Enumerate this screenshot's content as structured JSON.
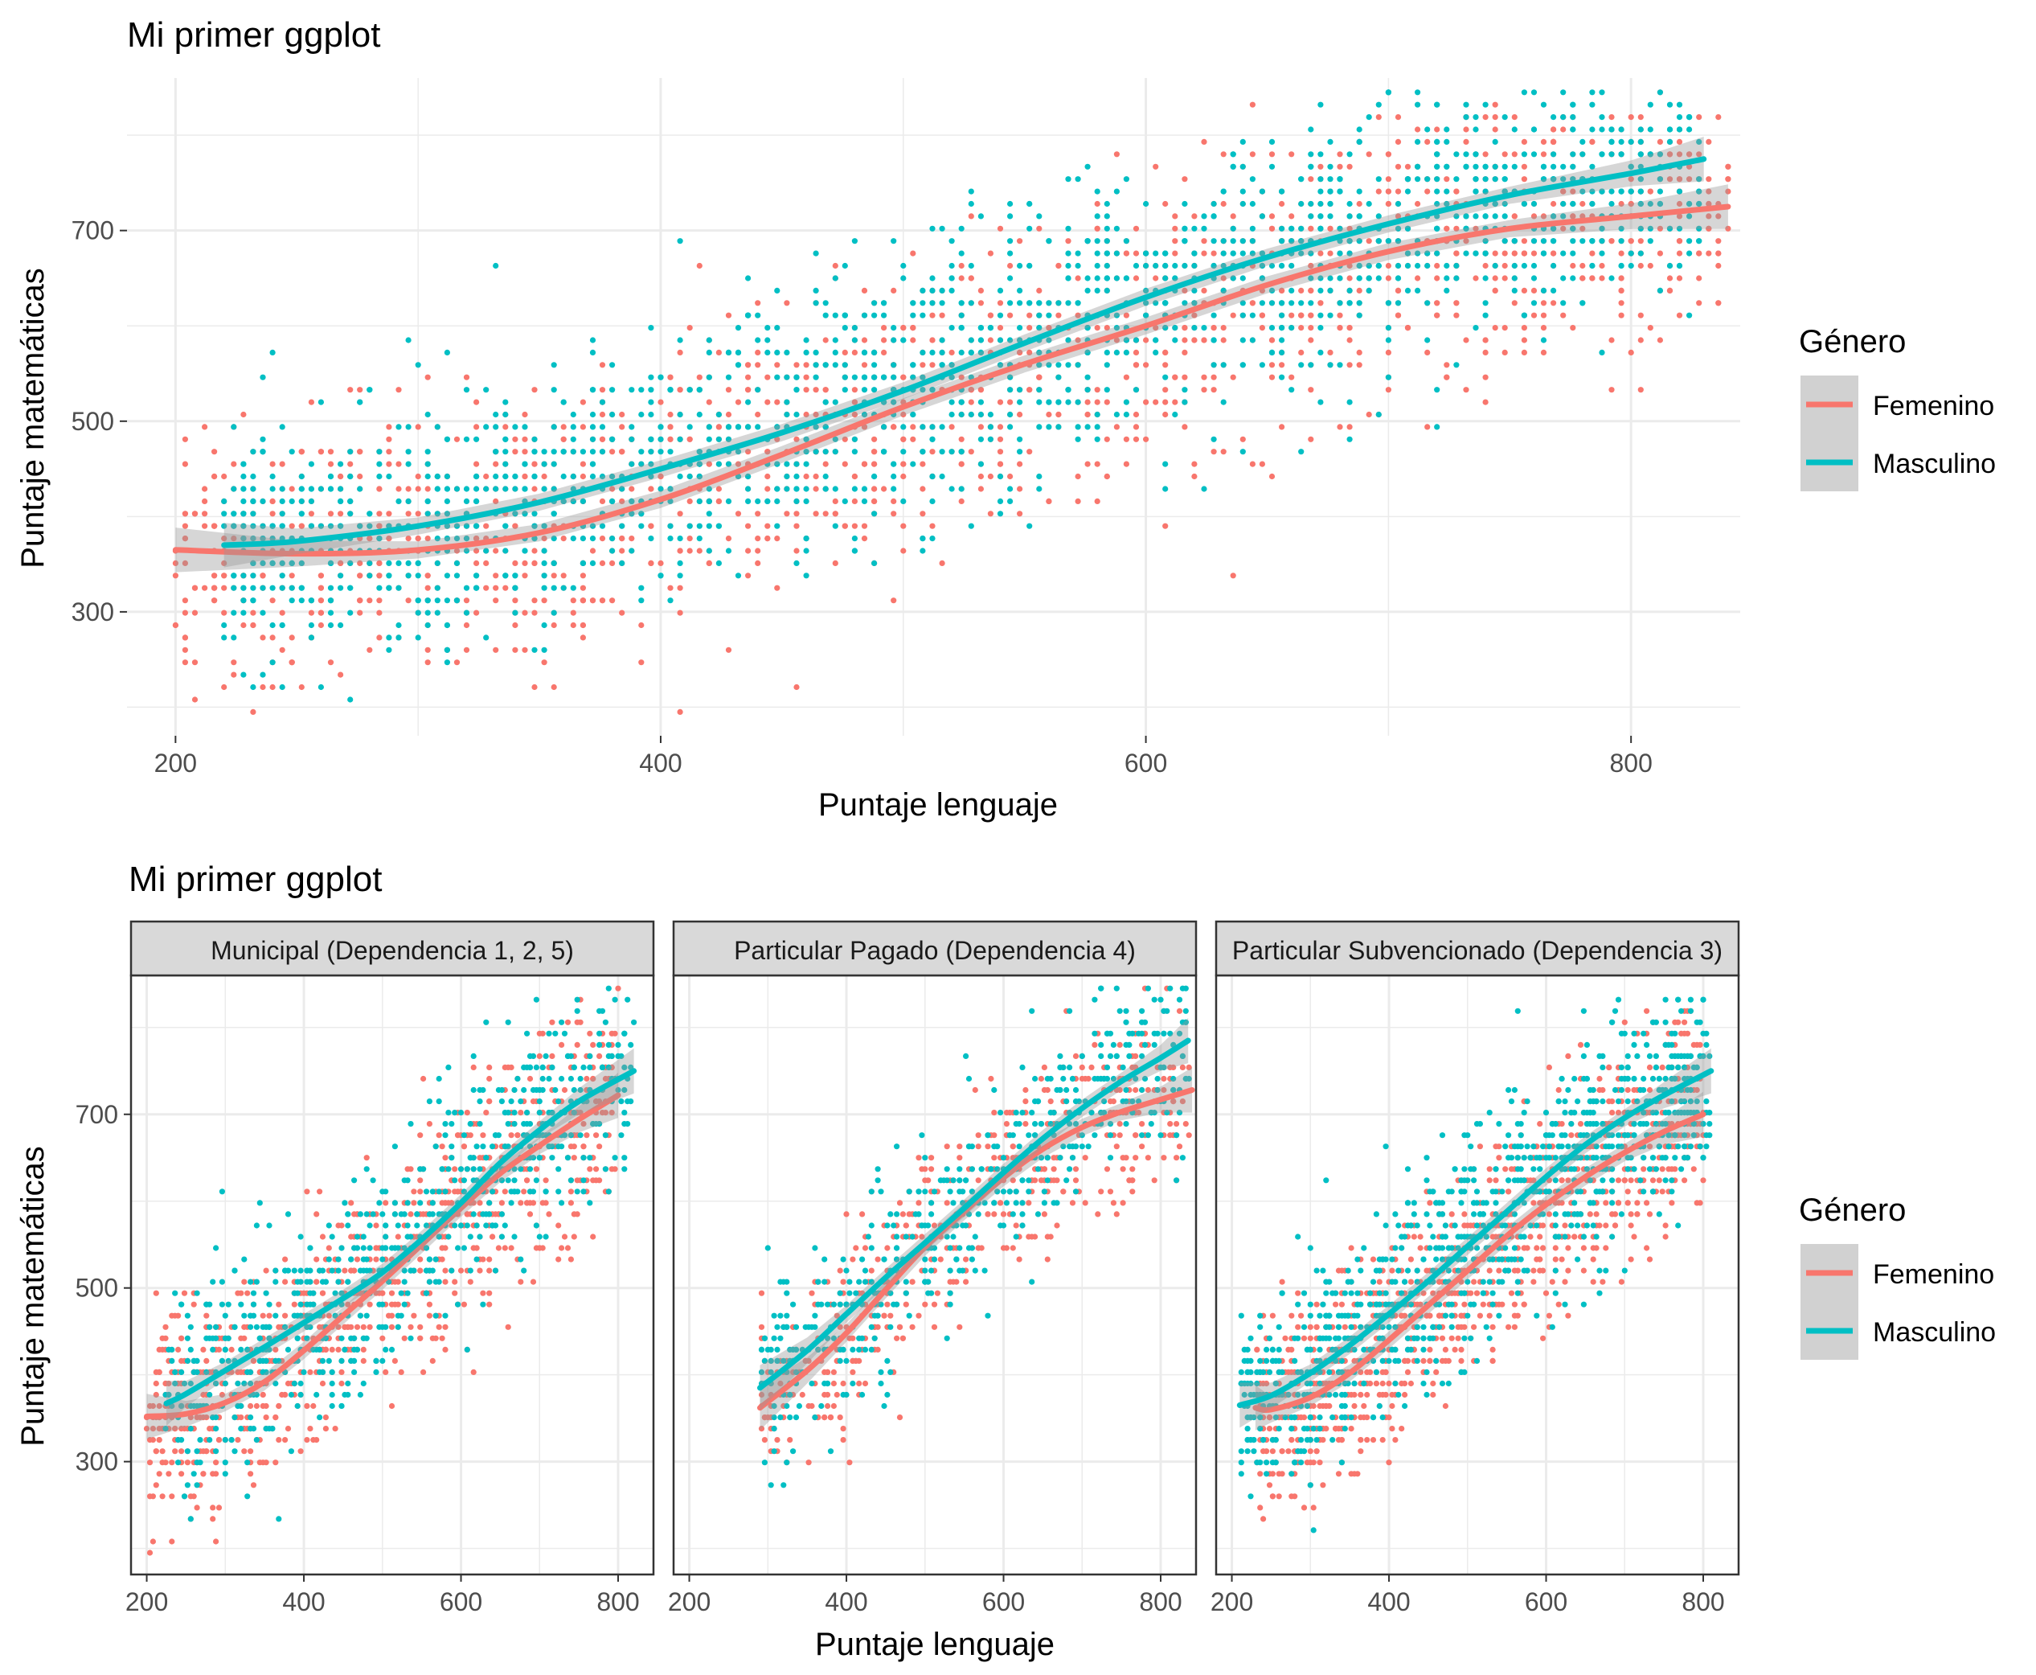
{
  "colors": {
    "femenino": "#F8766D",
    "masculino": "#00BFC4",
    "ribbon": "#999999",
    "strip_fill": "#D9D9D9",
    "grid": "#EBEBEB",
    "frame": "#333333"
  },
  "chart_data": [
    {
      "type": "scatter",
      "title": "Mi primer ggplot",
      "xlabel": "Puntaje lenguaje",
      "ylabel": "Puntaje matemáticas",
      "xlim": [
        180,
        845
      ],
      "ylim": [
        170,
        860
      ],
      "xticks": [
        "200",
        "400",
        "600",
        "800"
      ],
      "yticks": [
        "300",
        "500",
        "700"
      ],
      "grid": true,
      "legend": {
        "title": "Género",
        "position": "right",
        "entries": [
          "Femenino",
          "Masculino"
        ]
      },
      "smooth": {
        "method": "loess",
        "series": [
          {
            "name": "Femenino",
            "x": [
              200,
              250,
              300,
              350,
              400,
              450,
              500,
              550,
              600,
              650,
              700,
              750,
              800,
              840
            ],
            "y": [
              365,
              361,
              365,
              383,
              418,
              465,
              515,
              560,
              600,
              643,
              678,
              702,
              715,
              725
            ]
          },
          {
            "name": "Masculino",
            "x": [
              220,
              250,
              300,
              350,
              400,
              450,
              500,
              550,
              600,
              650,
              700,
              750,
              800,
              830
            ],
            "y": [
              370,
              374,
              390,
              415,
              450,
              488,
              532,
              582,
              630,
              672,
              707,
              737,
              760,
              775
            ]
          }
        ]
      },
      "points": {
        "series": [
          {
            "name": "Femenino",
            "approx_count": 1700,
            "center_curve": "Femenino",
            "x_range": [
              200,
              840
            ]
          },
          {
            "name": "Masculino",
            "approx_count": 1700,
            "center_curve": "Masculino",
            "x_range": [
              220,
              830
            ]
          }
        ]
      }
    },
    {
      "type": "scatter",
      "title": "Mi primer ggplot",
      "xlabel": "Puntaje lenguaje",
      "ylabel": "Puntaje matemáticas",
      "xlim": [
        180,
        845
      ],
      "ylim": [
        170,
        860
      ],
      "xticks": [
        "200",
        "400",
        "600",
        "800"
      ],
      "yticks": [
        "300",
        "500",
        "700"
      ],
      "grid": true,
      "legend": {
        "title": "Género",
        "position": "right",
        "entries": [
          "Femenino",
          "Masculino"
        ]
      },
      "facets": [
        {
          "label": "Municipal (Dependencia 1, 2, 5)",
          "smooth": [
            {
              "name": "Femenino",
              "x": [
                200,
                250,
                300,
                350,
                400,
                450,
                500,
                550,
                600,
                650,
                700,
                750,
                800
              ],
              "y": [
                352,
                355,
                368,
                392,
                428,
                468,
                508,
                550,
                592,
                632,
                664,
                694,
                722
              ]
            },
            {
              "name": "Masculino",
              "x": [
                225,
                250,
                300,
                350,
                400,
                450,
                500,
                550,
                600,
                650,
                700,
                750,
                820
              ],
              "y": [
                367,
                378,
                405,
                432,
                460,
                488,
                518,
                556,
                598,
                644,
                682,
                715,
                750
              ]
            }
          ],
          "points": [
            {
              "name": "Femenino",
              "approx_count": 900,
              "x_range": [
                200,
                800
              ]
            },
            {
              "name": "Masculino",
              "approx_count": 700,
              "x_range": [
                225,
                820
              ]
            }
          ]
        },
        {
          "label": "Particular Pagado (Dependencia 4)",
          "smooth": [
            {
              "name": "Femenino",
              "x": [
                290,
                350,
                400,
                450,
                500,
                550,
                600,
                650,
                700,
                750,
                800,
                840
              ],
              "y": [
                362,
                405,
                448,
                498,
                547,
                588,
                627,
                660,
                685,
                703,
                717,
                728
              ]
            },
            {
              "name": "Masculino",
              "x": [
                290,
                350,
                400,
                450,
                500,
                550,
                600,
                650,
                700,
                750,
                800,
                835
              ],
              "y": [
                385,
                428,
                470,
                512,
                552,
                592,
                633,
                672,
                707,
                738,
                765,
                785
              ]
            }
          ],
          "points": [
            {
              "name": "Femenino",
              "approx_count": 500,
              "x_range": [
                290,
                840
              ]
            },
            {
              "name": "Masculino",
              "approx_count": 500,
              "x_range": [
                290,
                835
              ]
            }
          ]
        },
        {
          "label": "Particular Subvencionado (Dependencia 3)",
          "smooth": [
            {
              "name": "Femenino",
              "x": [
                230,
                250,
                300,
                350,
                400,
                450,
                500,
                550,
                600,
                650,
                700,
                750,
                800
              ],
              "y": [
                362,
                360,
                374,
                402,
                440,
                480,
                520,
                560,
                596,
                628,
                656,
                680,
                700
              ]
            },
            {
              "name": "Masculino",
              "x": [
                210,
                250,
                300,
                350,
                400,
                450,
                500,
                550,
                600,
                650,
                700,
                750,
                810
              ],
              "y": [
                365,
                376,
                402,
                434,
                470,
                508,
                548,
                588,
                628,
                665,
                696,
                722,
                750
              ]
            }
          ],
          "points": [
            {
              "name": "Femenino",
              "approx_count": 1100,
              "x_range": [
                230,
                800
              ]
            },
            {
              "name": "Masculino",
              "approx_count": 1000,
              "x_range": [
                210,
                810
              ]
            }
          ]
        }
      ]
    }
  ]
}
